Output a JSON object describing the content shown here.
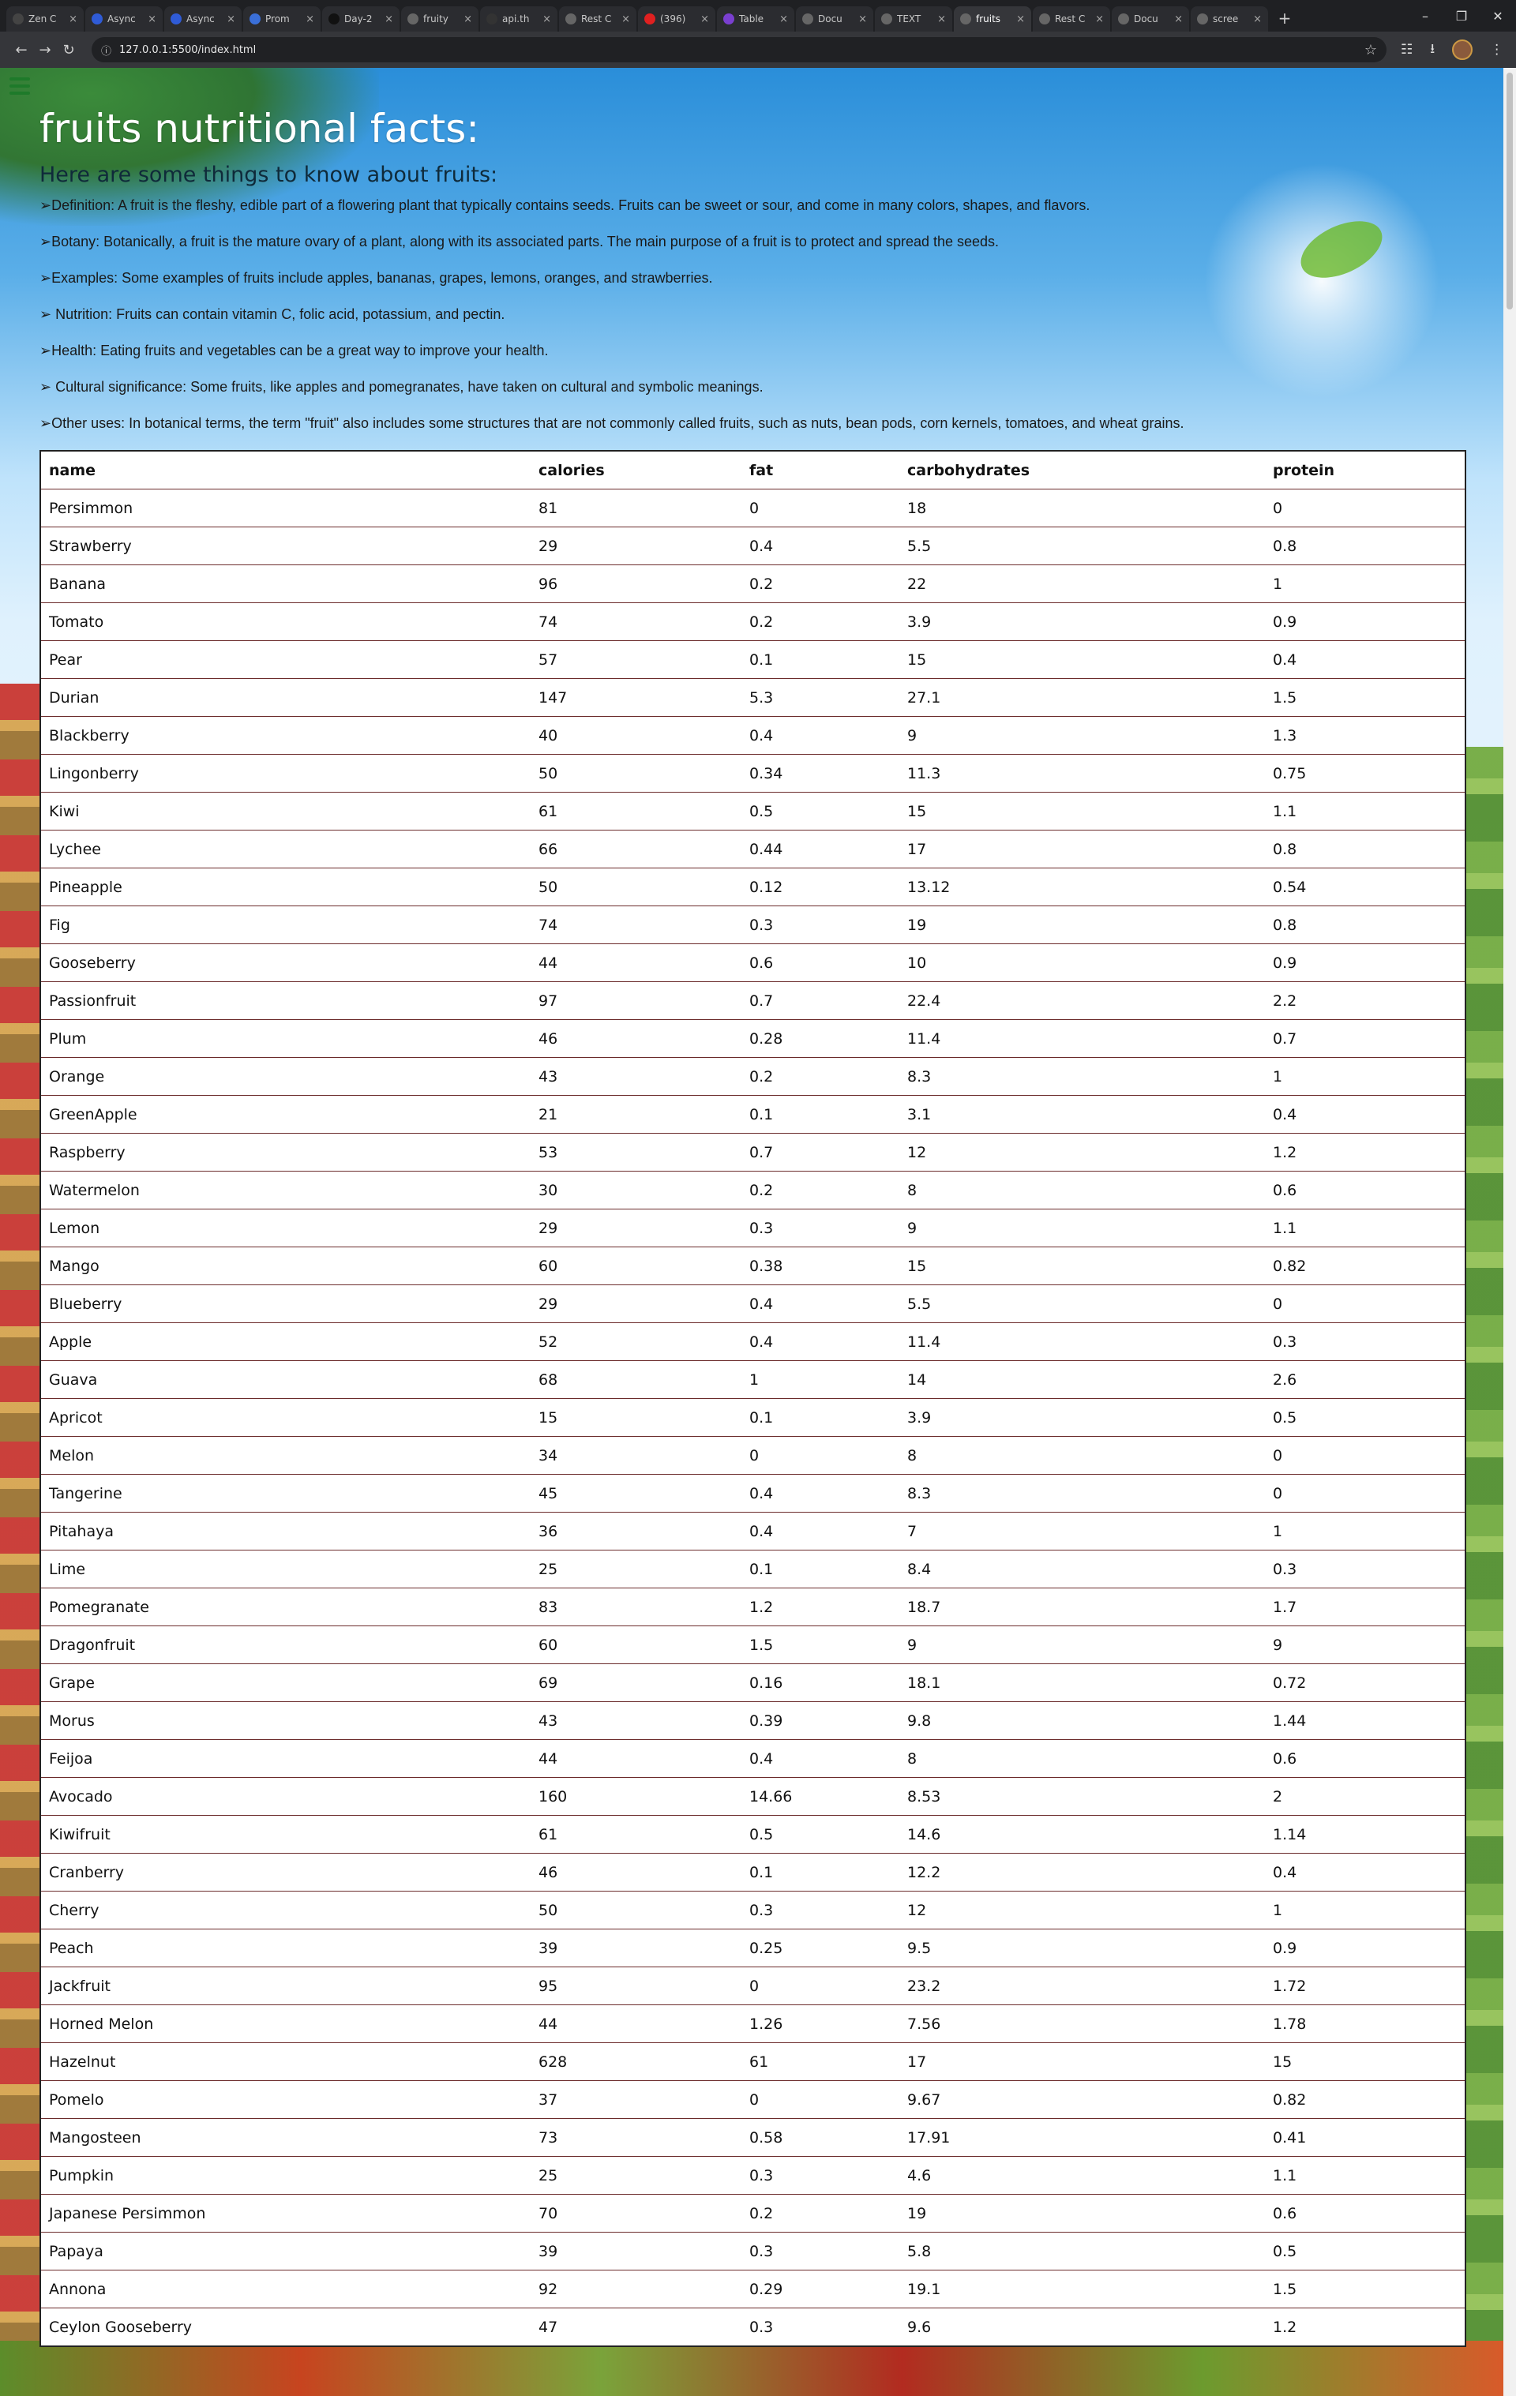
{
  "browser": {
    "tabs": [
      {
        "title": "Zen C",
        "fav": "#444"
      },
      {
        "title": "Async",
        "fav": "#2f5bd6"
      },
      {
        "title": "Async",
        "fav": "#2f5bd6"
      },
      {
        "title": "Prom",
        "fav": "#3a6fd8"
      },
      {
        "title": "Day-2",
        "fav": "#111"
      },
      {
        "title": "fruity",
        "fav": "#666"
      },
      {
        "title": "api.th",
        "fav": "#333"
      },
      {
        "title": "Rest C",
        "fav": "#666"
      },
      {
        "title": "(396)",
        "fav": "#e02020"
      },
      {
        "title": "Table",
        "fav": "#7a3fd0"
      },
      {
        "title": "Docu",
        "fav": "#666"
      },
      {
        "title": "TEXT",
        "fav": "#666"
      },
      {
        "title": "fruits",
        "fav": "#666"
      },
      {
        "title": "Rest C",
        "fav": "#666"
      },
      {
        "title": "Docu",
        "fav": "#666"
      },
      {
        "title": "scree",
        "fav": "#666"
      }
    ],
    "url": "127.0.0.1:5500/index.html"
  },
  "page": {
    "title": "fruits nutritional facts:",
    "subtitle": "Here are some things to know about fruits:",
    "facts": [
      "➢Definition: A fruit is the fleshy, edible part of a flowering plant that typically contains seeds. Fruits can be sweet or sour, and come in many colors, shapes, and flavors.",
      "➢Botany: Botanically, a fruit is the mature ovary of a plant, along with its associated parts. The main purpose of a fruit is to protect and spread the seeds.",
      "➢Examples: Some examples of fruits include apples, bananas, grapes, lemons, oranges, and strawberries.",
      "➢ Nutrition: Fruits can contain vitamin C, folic acid, potassium, and pectin.",
      "➢Health: Eating fruits and vegetables can be a great way to improve your health.",
      "➢ Cultural significance: Some fruits, like apples and pomegranates, have taken on cultural and symbolic meanings.",
      "➢Other uses: In botanical terms, the term \"fruit\" also includes some structures that are not commonly called fruits, such as nuts, bean pods, corn kernels, tomatoes, and wheat grains."
    ]
  },
  "table": {
    "headers": [
      "name",
      "calories",
      "fat",
      "carbohydrates",
      "protein"
    ],
    "rows": [
      [
        "Persimmon",
        "81",
        "0",
        "18",
        "0"
      ],
      [
        "Strawberry",
        "29",
        "0.4",
        "5.5",
        "0.8"
      ],
      [
        "Banana",
        "96",
        "0.2",
        "22",
        "1"
      ],
      [
        "Tomato",
        "74",
        "0.2",
        "3.9",
        "0.9"
      ],
      [
        "Pear",
        "57",
        "0.1",
        "15",
        "0.4"
      ],
      [
        "Durian",
        "147",
        "5.3",
        "27.1",
        "1.5"
      ],
      [
        "Blackberry",
        "40",
        "0.4",
        "9",
        "1.3"
      ],
      [
        "Lingonberry",
        "50",
        "0.34",
        "11.3",
        "0.75"
      ],
      [
        "Kiwi",
        "61",
        "0.5",
        "15",
        "1.1"
      ],
      [
        "Lychee",
        "66",
        "0.44",
        "17",
        "0.8"
      ],
      [
        "Pineapple",
        "50",
        "0.12",
        "13.12",
        "0.54"
      ],
      [
        "Fig",
        "74",
        "0.3",
        "19",
        "0.8"
      ],
      [
        "Gooseberry",
        "44",
        "0.6",
        "10",
        "0.9"
      ],
      [
        "Passionfruit",
        "97",
        "0.7",
        "22.4",
        "2.2"
      ],
      [
        "Plum",
        "46",
        "0.28",
        "11.4",
        "0.7"
      ],
      [
        "Orange",
        "43",
        "0.2",
        "8.3",
        "1"
      ],
      [
        "GreenApple",
        "21",
        "0.1",
        "3.1",
        "0.4"
      ],
      [
        "Raspberry",
        "53",
        "0.7",
        "12",
        "1.2"
      ],
      [
        "Watermelon",
        "30",
        "0.2",
        "8",
        "0.6"
      ],
      [
        "Lemon",
        "29",
        "0.3",
        "9",
        "1.1"
      ],
      [
        "Mango",
        "60",
        "0.38",
        "15",
        "0.82"
      ],
      [
        "Blueberry",
        "29",
        "0.4",
        "5.5",
        "0"
      ],
      [
        "Apple",
        "52",
        "0.4",
        "11.4",
        "0.3"
      ],
      [
        "Guava",
        "68",
        "1",
        "14",
        "2.6"
      ],
      [
        "Apricot",
        "15",
        "0.1",
        "3.9",
        "0.5"
      ],
      [
        "Melon",
        "34",
        "0",
        "8",
        "0"
      ],
      [
        "Tangerine",
        "45",
        "0.4",
        "8.3",
        "0"
      ],
      [
        "Pitahaya",
        "36",
        "0.4",
        "7",
        "1"
      ],
      [
        "Lime",
        "25",
        "0.1",
        "8.4",
        "0.3"
      ],
      [
        "Pomegranate",
        "83",
        "1.2",
        "18.7",
        "1.7"
      ],
      [
        "Dragonfruit",
        "60",
        "1.5",
        "9",
        "9"
      ],
      [
        "Grape",
        "69",
        "0.16",
        "18.1",
        "0.72"
      ],
      [
        "Morus",
        "43",
        "0.39",
        "9.8",
        "1.44"
      ],
      [
        "Feijoa",
        "44",
        "0.4",
        "8",
        "0.6"
      ],
      [
        "Avocado",
        "160",
        "14.66",
        "8.53",
        "2"
      ],
      [
        "Kiwifruit",
        "61",
        "0.5",
        "14.6",
        "1.14"
      ],
      [
        "Cranberry",
        "46",
        "0.1",
        "12.2",
        "0.4"
      ],
      [
        "Cherry",
        "50",
        "0.3",
        "12",
        "1"
      ],
      [
        "Peach",
        "39",
        "0.25",
        "9.5",
        "0.9"
      ],
      [
        "Jackfruit",
        "95",
        "0",
        "23.2",
        "1.72"
      ],
      [
        "Horned Melon",
        "44",
        "1.26",
        "7.56",
        "1.78"
      ],
      [
        "Hazelnut",
        "628",
        "61",
        "17",
        "15"
      ],
      [
        "Pomelo",
        "37",
        "0",
        "9.67",
        "0.82"
      ],
      [
        "Mangosteen",
        "73",
        "0.58",
        "17.91",
        "0.41"
      ],
      [
        "Pumpkin",
        "25",
        "0.3",
        "4.6",
        "1.1"
      ],
      [
        "Japanese Persimmon",
        "70",
        "0.2",
        "19",
        "0.6"
      ],
      [
        "Papaya",
        "39",
        "0.3",
        "5.8",
        "0.5"
      ],
      [
        "Annona",
        "92",
        "0.29",
        "19.1",
        "1.5"
      ],
      [
        "Ceylon Gooseberry",
        "47",
        "0.3",
        "9.6",
        "1.2"
      ]
    ]
  }
}
